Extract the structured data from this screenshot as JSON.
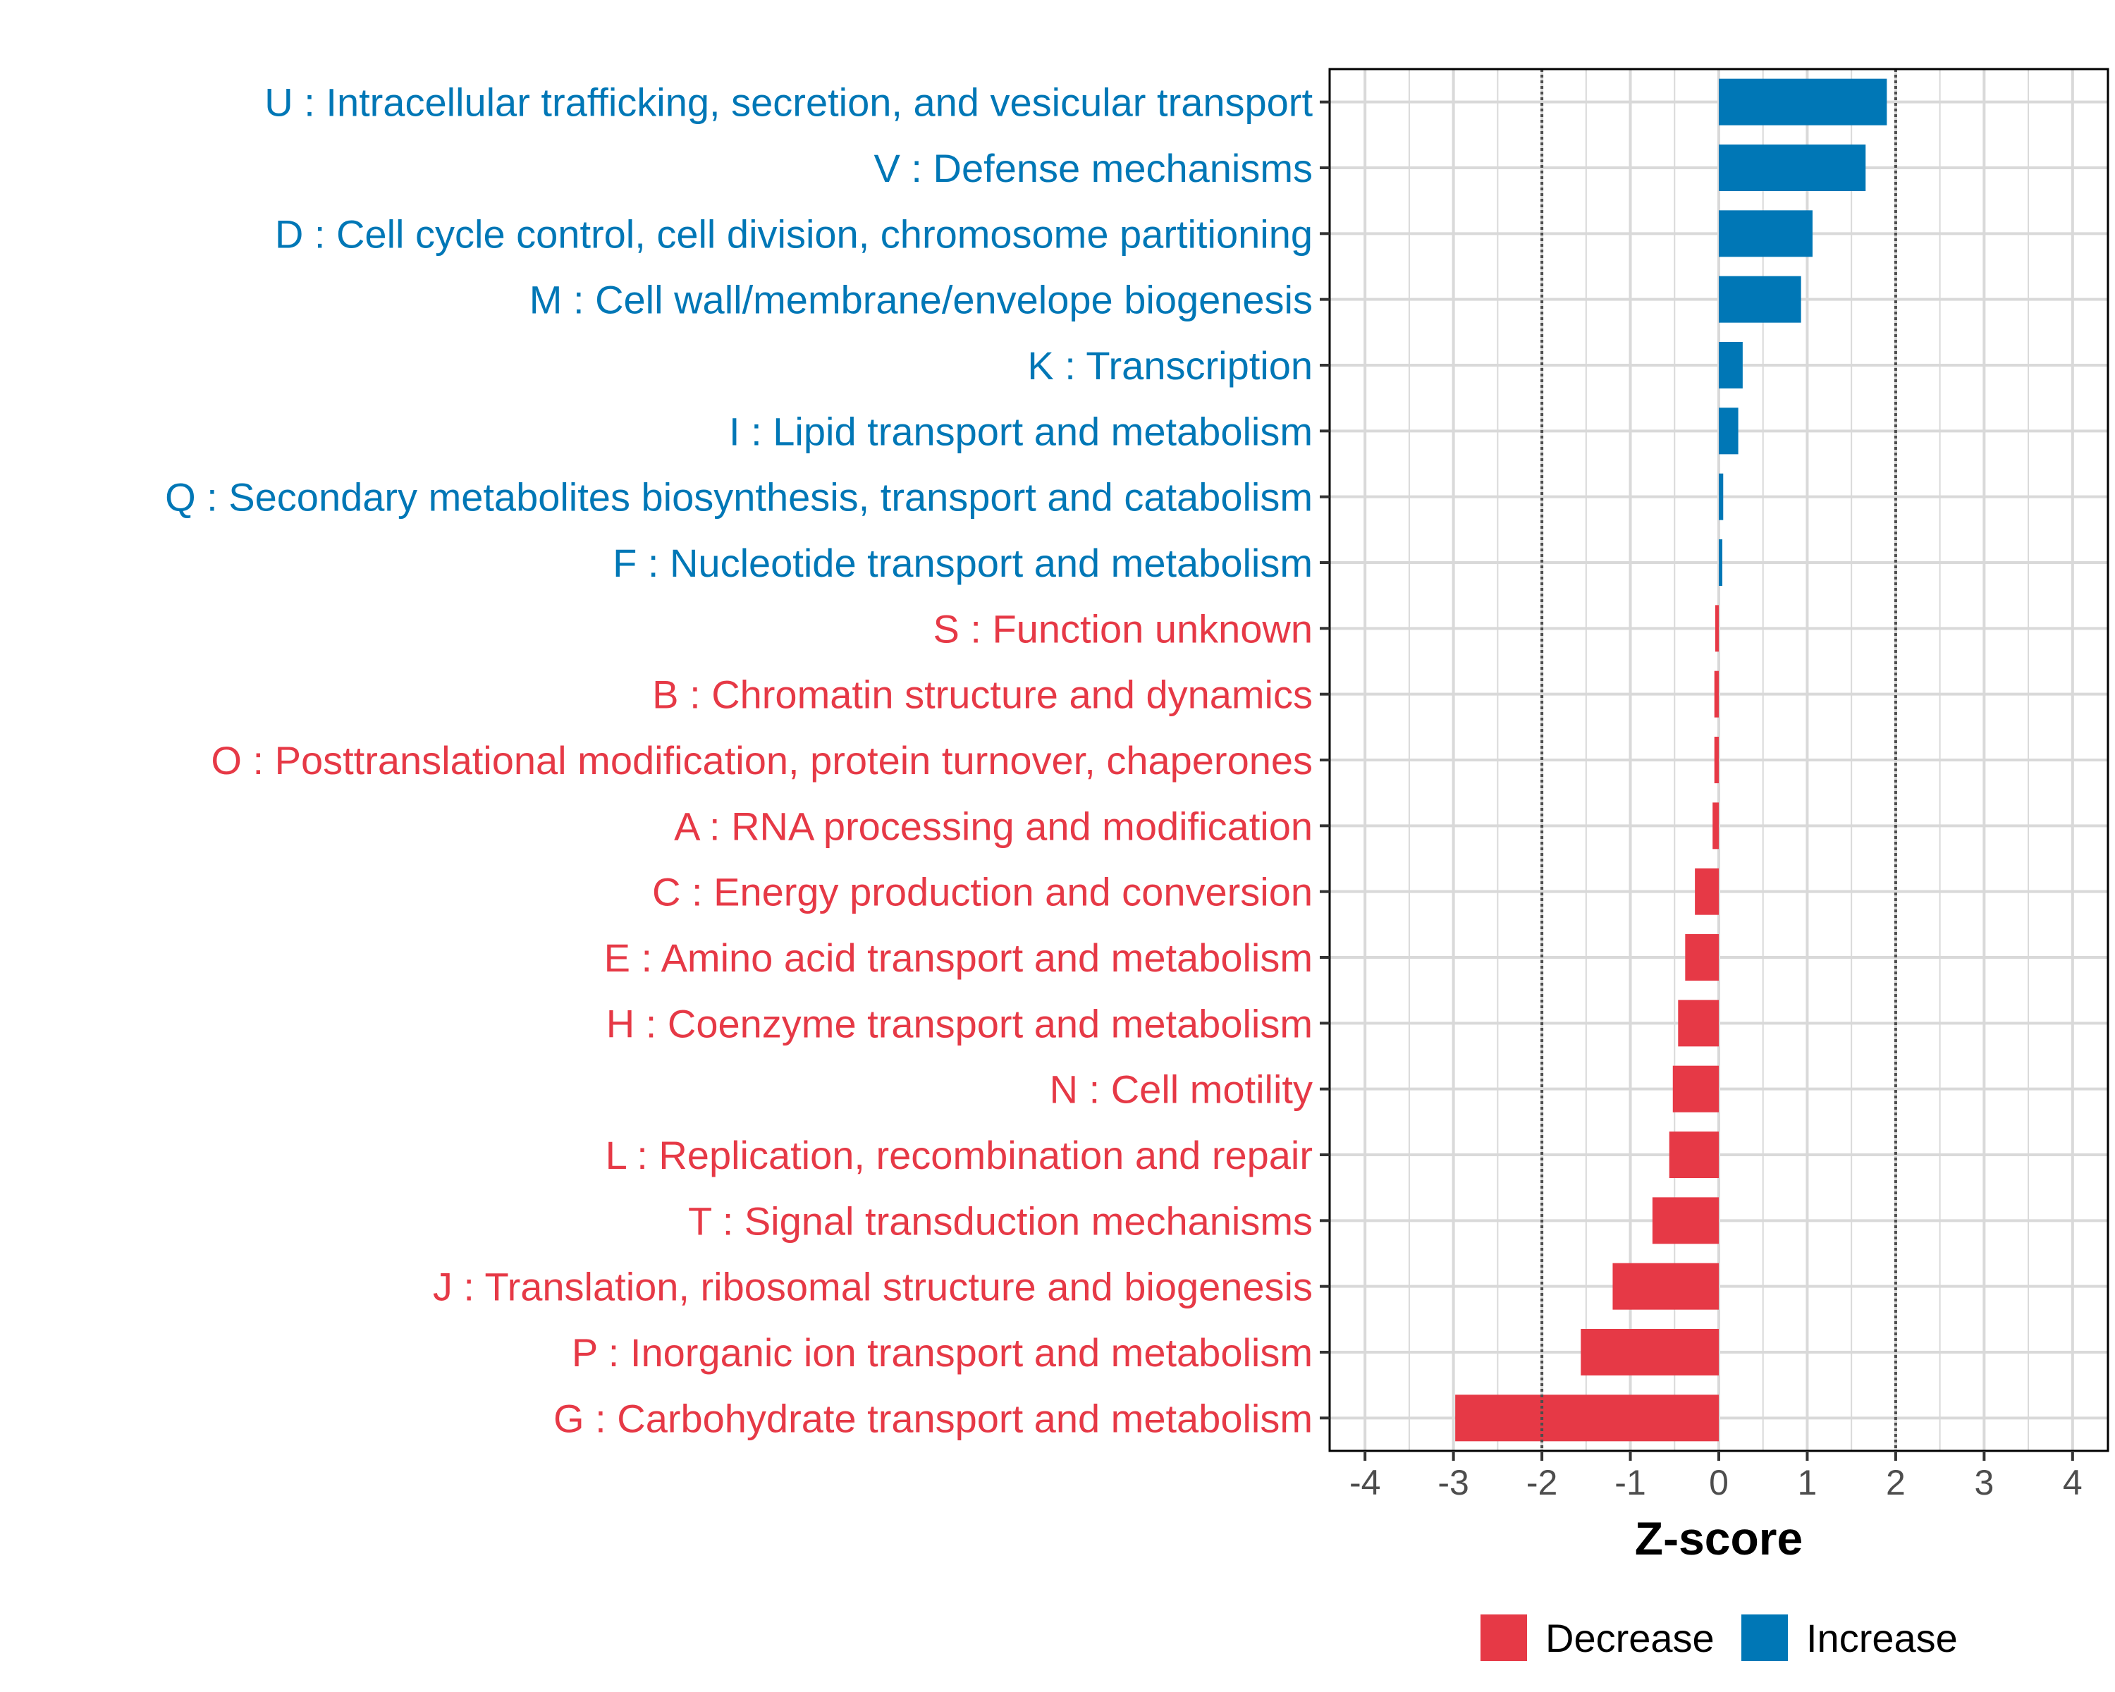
{
  "chart_data": {
    "type": "bar",
    "orientation": "horizontal",
    "xlabel": "Z-score",
    "xlim": [
      -4.4,
      4.4
    ],
    "xticks": [
      -4,
      -3,
      -2,
      -1,
      0,
      1,
      2,
      3,
      4
    ],
    "xtick_labels": [
      "-4",
      "-3",
      "-2",
      "-1",
      "0",
      "1",
      "2",
      "3",
      "4"
    ],
    "reference_lines": [
      -2,
      2
    ],
    "grid": true,
    "categories": [
      {
        "label": "U : Intracellular trafficking, secretion, and vesicular transport",
        "value": 1.9,
        "group": "Increase"
      },
      {
        "label": "V : Defense mechanisms",
        "value": 1.66,
        "group": "Increase"
      },
      {
        "label": "D : Cell cycle control, cell division, chromosome partitioning",
        "value": 1.06,
        "group": "Increase"
      },
      {
        "label": "M : Cell wall/membrane/envelope biogenesis",
        "value": 0.93,
        "group": "Increase"
      },
      {
        "label": "K : Transcription",
        "value": 0.27,
        "group": "Increase"
      },
      {
        "label": "I : Lipid transport and metabolism",
        "value": 0.22,
        "group": "Increase"
      },
      {
        "label": "Q : Secondary metabolites biosynthesis, transport and catabolism",
        "value": 0.05,
        "group": "Increase"
      },
      {
        "label": "F : Nucleotide transport and metabolism",
        "value": 0.04,
        "group": "Increase"
      },
      {
        "label": "S : Function unknown",
        "value": -0.04,
        "group": "Decrease"
      },
      {
        "label": "B : Chromatin structure and dynamics",
        "value": -0.05,
        "group": "Decrease"
      },
      {
        "label": "O : Posttranslational modification, protein turnover, chaperones",
        "value": -0.05,
        "group": "Decrease"
      },
      {
        "label": "A : RNA processing and modification",
        "value": -0.07,
        "group": "Decrease"
      },
      {
        "label": "C : Energy production and conversion",
        "value": -0.27,
        "group": "Decrease"
      },
      {
        "label": "E : Amino acid transport and metabolism",
        "value": -0.38,
        "group": "Decrease"
      },
      {
        "label": "H : Coenzyme transport and metabolism",
        "value": -0.46,
        "group": "Decrease"
      },
      {
        "label": "N : Cell motility",
        "value": -0.52,
        "group": "Decrease"
      },
      {
        "label": "L : Replication, recombination and repair",
        "value": -0.56,
        "group": "Decrease"
      },
      {
        "label": "T : Signal transduction mechanisms",
        "value": -0.75,
        "group": "Decrease"
      },
      {
        "label": "J : Translation, ribosomal structure and biogenesis",
        "value": -1.2,
        "group": "Decrease"
      },
      {
        "label": "P : Inorganic ion transport and metabolism",
        "value": -1.56,
        "group": "Decrease"
      },
      {
        "label": "G : Carbohydrate transport and metabolism",
        "value": -2.98,
        "group": "Decrease"
      }
    ],
    "legend": {
      "position": "bottom",
      "entries": [
        {
          "name": "Decrease",
          "color": "#e63946"
        },
        {
          "name": "Increase",
          "color": "#0077b6"
        }
      ]
    },
    "colors": {
      "Decrease": "#e63946",
      "Increase": "#0077b6",
      "grid": "#d9d9d9",
      "reference_line": "#4d4d4d"
    }
  }
}
